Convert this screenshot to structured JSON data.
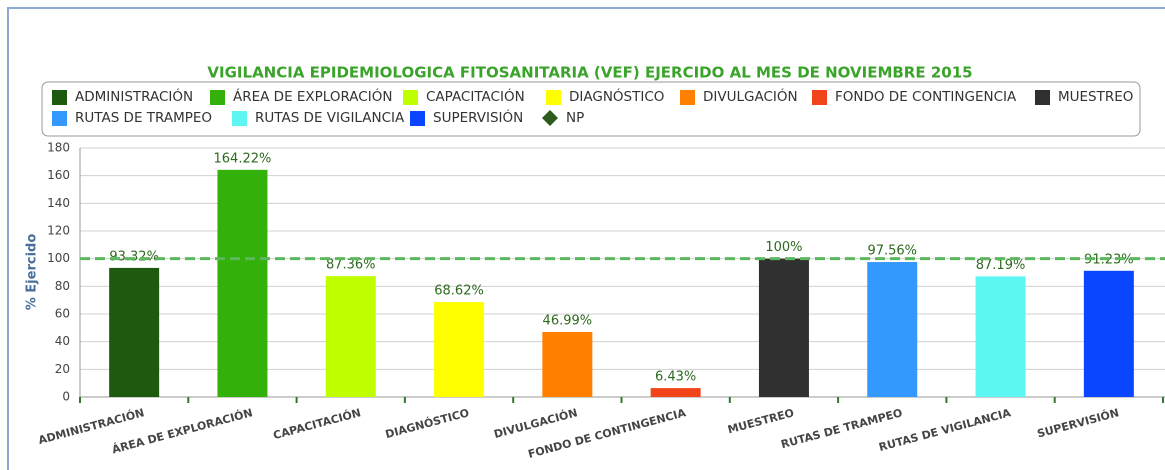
{
  "chart_data": {
    "type": "bar",
    "title": "VIGILANCIA EPIDEMIOLOGICA FITOSANITARIA (VEF) EJERCIDO AL MES DE NOVIEMBRE 2015",
    "y_label": "% Ejercido",
    "categories": [
      "ADMINISTRACIÓN",
      "ÁREA DE EXPLORACIÓN",
      "CAPACITACIÓN",
      "DIAGNÓSTICO",
      "DIVULGACIÓN",
      "FONDO DE CONTINGENCIA",
      "MUESTREO",
      "RUTAS DE TRAMPEO",
      "RUTAS DE VIGILANCIA",
      "SUPERVISIÓN"
    ],
    "values": [
      93.32,
      164.22,
      87.36,
      68.62,
      46.99,
      6.43,
      100,
      97.56,
      87.19,
      91.23
    ],
    "value_labels": [
      "93.32%",
      "164.22%",
      "87.36%",
      "68.62%",
      "46.99%",
      "6.43%",
      "100%",
      "97.56%",
      "87.19%",
      "91.23%"
    ],
    "colors": [
      "#1e5a0e",
      "#33b10a",
      "#bfff00",
      "#ffff00",
      "#ff8000",
      "#f2441a",
      "#303030",
      "#3399ff",
      "#5cf7f2",
      "#0a46ff"
    ],
    "reference": {
      "name": "NP",
      "value": 100,
      "color": "#2d5a1e",
      "line_color": "#5cb85c"
    },
    "ylim": [
      0,
      180
    ],
    "yticks": [
      0,
      20,
      40,
      60,
      80,
      100,
      120,
      140,
      160,
      180
    ],
    "grid": true
  }
}
